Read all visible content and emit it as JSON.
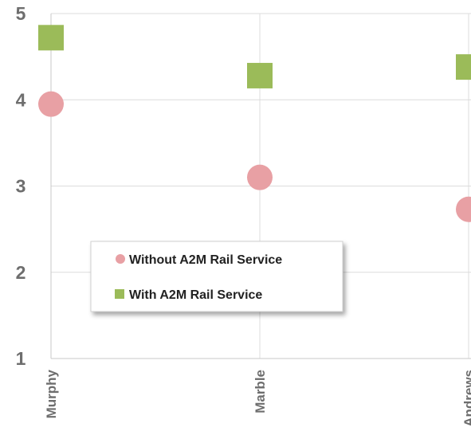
{
  "chart_data": {
    "type": "scatter",
    "categories": [
      "Murphy",
      "Marble",
      "Andrews"
    ],
    "series": [
      {
        "name": "Without A2M Rail Service",
        "marker": "circle",
        "color": "#e8a0a4",
        "values": [
          3.95,
          3.1,
          2.73
        ]
      },
      {
        "name": "With A2M Rail Service",
        "marker": "square",
        "color": "#9bbb59",
        "values": [
          4.72,
          4.28,
          4.38
        ]
      }
    ],
    "ylim": [
      1,
      5
    ],
    "yticks": [
      1,
      2,
      3,
      4,
      5
    ],
    "grid": true,
    "legend_position": "lower-left"
  }
}
